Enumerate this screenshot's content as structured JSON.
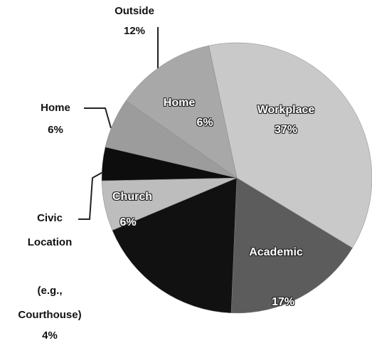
{
  "chart_data": {
    "type": "pie",
    "categories": [
      "Workplace",
      "Academic",
      null,
      "Church",
      "Civic\nLocation\n\n(e.g.,\nCourthouse)",
      "Home",
      "Outside"
    ],
    "values": [
      37,
      17,
      18,
      6,
      4,
      6,
      12
    ],
    "value_labels": [
      "37%",
      "17%",
      null,
      "6%",
      "4%",
      "6%",
      "12%"
    ],
    "colors": [
      "#c9c9c9",
      "#5c5c5c",
      "#111111",
      "#bdbdbd",
      "#0d0d0d",
      "#9c9c9c",
      "#a8a8a8"
    ],
    "start_angle": -12
  }
}
